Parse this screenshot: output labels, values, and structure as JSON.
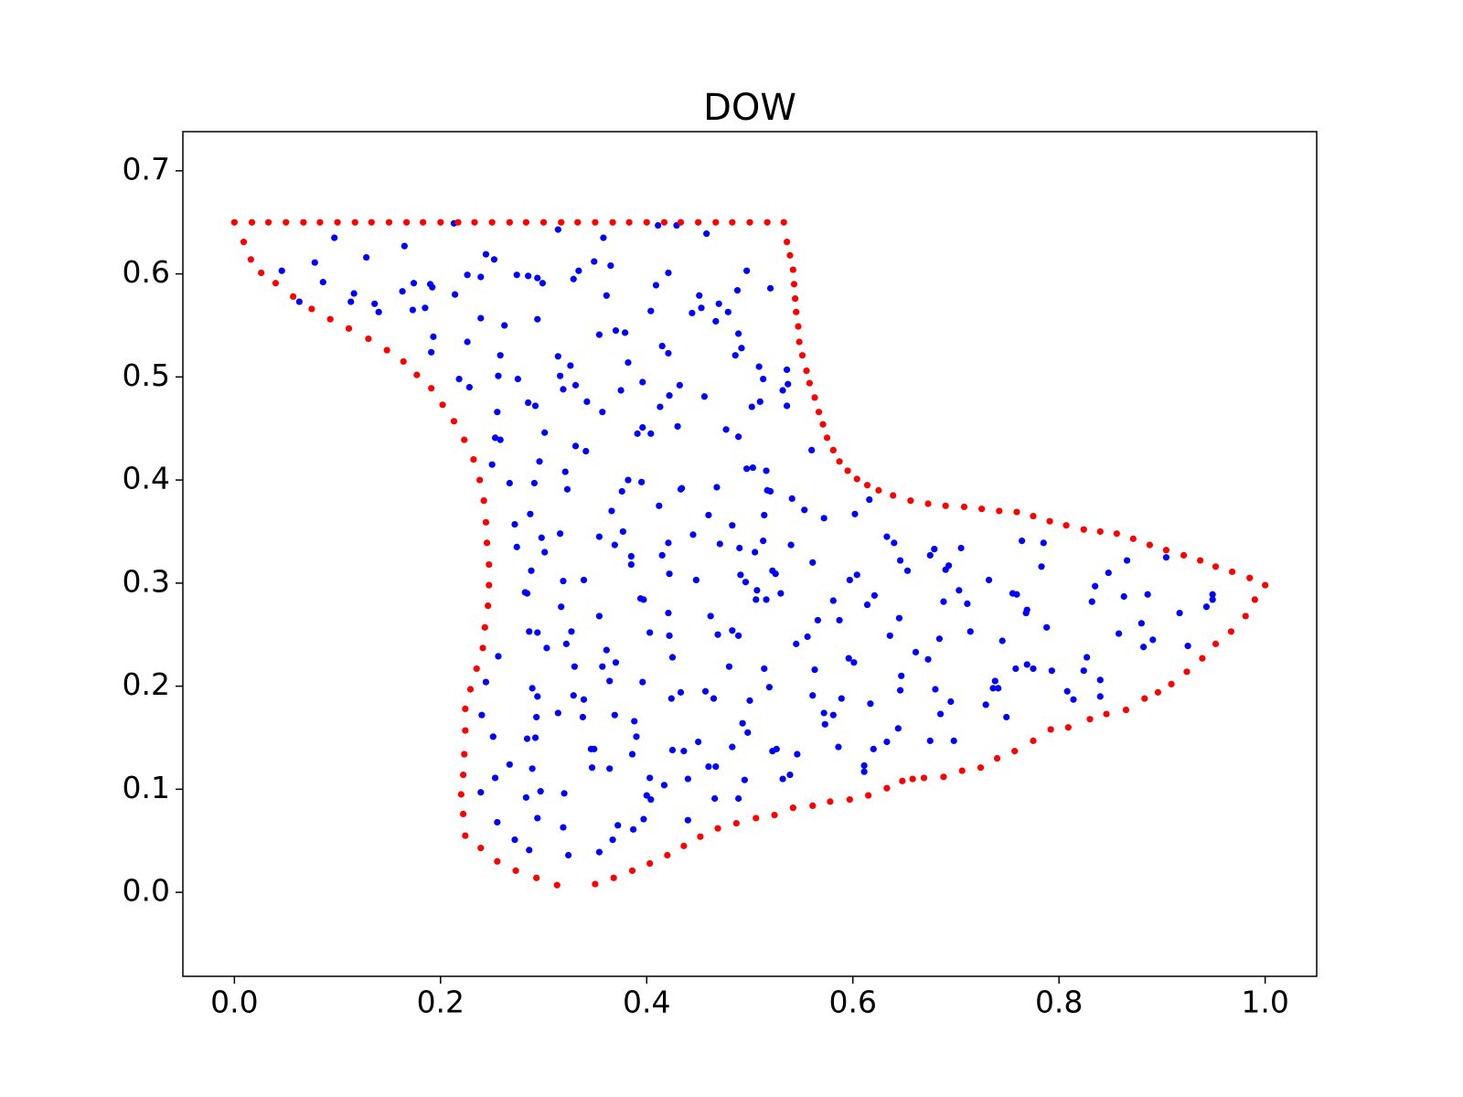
{
  "chart_data": {
    "type": "scatter",
    "title": "DOW",
    "xlim": [
      -0.05,
      1.05
    ],
    "ylim": [
      -0.0815,
      0.738
    ],
    "xticks": [
      {
        "value": 0,
        "label": "0.0"
      },
      0.2,
      0.4,
      0.6,
      0.8,
      {
        "value": 1,
        "label": "1.0"
      }
    ],
    "yticks": [
      {
        "value": 0,
        "label": "0.0"
      },
      0.1,
      0.2,
      0.3,
      0.4,
      0.5,
      0.6,
      0.7
    ],
    "series": [
      {
        "color": "#0000ff",
        "x": [
          0.213,
          0.314,
          0.358,
          0.411,
          0.429,
          0.458,
          0.097,
          0.128,
          0.165,
          0.046,
          0.078,
          0.086,
          0.063,
          0.116,
          0.113,
          0.136,
          0.14,
          0.163,
          0.174,
          0.19,
          0.192,
          0.173,
          0.185,
          0.214,
          0.226,
          0.239,
          0.244,
          0.252,
          0.274,
          0.285,
          0.294,
          0.299,
          0.329,
          0.334,
          0.349,
          0.365,
          0.361,
          0.409,
          0.421,
          0.294,
          0.262,
          0.239,
          0.226,
          0.193,
          0.191,
          0.218,
          0.228,
          0.258,
          0.256,
          0.275,
          0.314,
          0.326,
          0.316,
          0.319,
          0.331,
          0.342,
          0.357,
          0.354,
          0.37,
          0.379,
          0.382,
          0.375,
          0.396,
          0.404,
          0.415,
          0.421,
          0.432,
          0.413,
          0.422,
          0.43,
          0.396,
          0.391,
          0.404,
          0.444,
          0.451,
          0.453,
          0.467,
          0.47,
          0.479,
          0.488,
          0.497,
          0.52,
          0.489,
          0.492,
          0.486,
          0.509,
          0.513,
          0.536,
          0.537,
          0.532,
          0.536,
          0.502,
          0.51,
          0.456,
          0.477,
          0.489,
          0.503,
          0.516,
          0.517,
          0.52,
          0.541,
          0.553,
          0.56,
          0.572,
          0.602,
          0.616,
          0.301,
          0.285,
          0.292,
          0.331,
          0.341,
          0.296,
          0.25,
          0.253,
          0.258,
          0.255,
          0.267,
          0.291,
          0.287,
          0.272,
          0.274,
          0.298,
          0.316,
          0.288,
          0.301,
          0.321,
          0.323,
          0.366,
          0.376,
          0.382,
          0.395,
          0.412,
          0.433,
          0.434,
          0.468,
          0.46,
          0.483,
          0.514,
          0.497,
          0.354,
          0.377,
          0.369,
          0.385,
          0.421,
          0.445,
          0.471,
          0.49,
          0.513,
          0.54,
          0.505,
          0.385,
          0.415,
          0.422,
          0.448,
          0.491,
          0.522,
          0.525,
          0.507,
          0.496,
          0.53,
          0.561,
          0.581,
          0.587,
          0.597,
          0.604,
          0.614,
          0.621,
          0.633,
          0.64,
          0.646,
          0.653,
          0.675,
          0.679,
          0.705,
          0.69,
          0.693,
          0.703,
          0.711,
          0.688,
          0.732,
          0.755,
          0.759,
          0.764,
          0.785,
          0.783,
          0.768,
          0.769,
          0.788,
          0.832,
          0.835,
          0.848,
          0.866,
          0.863,
          0.886,
          0.904,
          0.917,
          0.949,
          0.949,
          0.943,
          0.88,
          0.858,
          0.891,
          0.882,
          0.925,
          0.827,
          0.824,
          0.84,
          0.808,
          0.814,
          0.84,
          0.793,
          0.769,
          0.775,
          0.758,
          0.745,
          0.738,
          0.736,
          0.741,
          0.729,
          0.749,
          0.714,
          0.684,
          0.673,
          0.68,
          0.695,
          0.685,
          0.675,
          0.698,
          0.661,
          0.645,
          0.636,
          0.647,
          0.646,
          0.617,
          0.644,
          0.633,
          0.62,
          0.611,
          0.611,
          0.596,
          0.601,
          0.589,
          0.581,
          0.586,
          0.572,
          0.573,
          0.561,
          0.563,
          0.566,
          0.556,
          0.545,
          0.546,
          0.539,
          0.532,
          0.526,
          0.522,
          0.514,
          0.519,
          0.5,
          0.493,
          0.498,
          0.483,
          0.489,
          0.495,
          0.466,
          0.467,
          0.46,
          0.45,
          0.44,
          0.44,
          0.436,
          0.425,
          0.417,
          0.403,
          0.4,
          0.404,
          0.397,
          0.387,
          0.367,
          0.372,
          0.354,
          0.364,
          0.346,
          0.349,
          0.347,
          0.386,
          0.388,
          0.39,
          0.369,
          0.338,
          0.339,
          0.329,
          0.314,
          0.289,
          0.294,
          0.293,
          0.292,
          0.284,
          0.289,
          0.267,
          0.283,
          0.297,
          0.294,
          0.255,
          0.272,
          0.286,
          0.319,
          0.32,
          0.324,
          0.253,
          0.239,
          0.24,
          0.251,
          0.244,
          0.256,
          0.286,
          0.294,
          0.303,
          0.322,
          0.33,
          0.357,
          0.364,
          0.37,
          0.396,
          0.361,
          0.354,
          0.317,
          0.319,
          0.339,
          0.282,
          0.284,
          0.327,
          0.403,
          0.422,
          0.425,
          0.421,
          0.394,
          0.397,
          0.424,
          0.433,
          0.457,
          0.465,
          0.462,
          0.469,
          0.483,
          0.489,
          0.48,
          0.506,
          0.516
        ],
        "y": [
          0.649,
          0.643,
          0.635,
          0.647,
          0.647,
          0.639,
          0.635,
          0.616,
          0.627,
          0.603,
          0.611,
          0.592,
          0.573,
          0.581,
          0.573,
          0.571,
          0.563,
          0.583,
          0.591,
          0.59,
          0.587,
          0.565,
          0.567,
          0.58,
          0.599,
          0.597,
          0.619,
          0.614,
          0.599,
          0.598,
          0.596,
          0.591,
          0.595,
          0.603,
          0.612,
          0.608,
          0.579,
          0.589,
          0.601,
          0.556,
          0.55,
          0.557,
          0.534,
          0.539,
          0.524,
          0.498,
          0.49,
          0.521,
          0.501,
          0.498,
          0.52,
          0.511,
          0.501,
          0.488,
          0.492,
          0.476,
          0.466,
          0.541,
          0.545,
          0.543,
          0.514,
          0.487,
          0.495,
          0.564,
          0.53,
          0.523,
          0.492,
          0.471,
          0.482,
          0.452,
          0.451,
          0.445,
          0.445,
          0.562,
          0.579,
          0.567,
          0.554,
          0.571,
          0.563,
          0.584,
          0.603,
          0.586,
          0.542,
          0.528,
          0.521,
          0.51,
          0.498,
          0.507,
          0.493,
          0.487,
          0.472,
          0.471,
          0.476,
          0.481,
          0.449,
          0.442,
          0.412,
          0.409,
          0.39,
          0.389,
          0.382,
          0.371,
          0.429,
          0.363,
          0.367,
          0.381,
          0.446,
          0.475,
          0.472,
          0.433,
          0.428,
          0.418,
          0.415,
          0.441,
          0.439,
          0.466,
          0.397,
          0.397,
          0.367,
          0.357,
          0.335,
          0.344,
          0.348,
          0.312,
          0.33,
          0.408,
          0.391,
          0.37,
          0.389,
          0.4,
          0.398,
          0.375,
          0.391,
          0.392,
          0.393,
          0.366,
          0.356,
          0.366,
          0.411,
          0.345,
          0.35,
          0.337,
          0.326,
          0.339,
          0.347,
          0.338,
          0.334,
          0.341,
          0.337,
          0.33,
          0.318,
          0.327,
          0.309,
          0.303,
          0.308,
          0.312,
          0.309,
          0.293,
          0.301,
          0.29,
          0.32,
          0.283,
          0.264,
          0.303,
          0.308,
          0.279,
          0.288,
          0.345,
          0.339,
          0.322,
          0.312,
          0.327,
          0.333,
          0.334,
          0.313,
          0.317,
          0.293,
          0.28,
          0.282,
          0.303,
          0.29,
          0.289,
          0.341,
          0.339,
          0.316,
          0.271,
          0.274,
          0.257,
          0.282,
          0.297,
          0.31,
          0.322,
          0.287,
          0.289,
          0.325,
          0.271,
          0.289,
          0.284,
          0.277,
          0.261,
          0.251,
          0.245,
          0.238,
          0.239,
          0.228,
          0.215,
          0.206,
          0.195,
          0.187,
          0.19,
          0.215,
          0.221,
          0.217,
          0.217,
          0.244,
          0.205,
          0.198,
          0.198,
          0.182,
          0.17,
          0.253,
          0.246,
          0.226,
          0.197,
          0.185,
          0.173,
          0.147,
          0.147,
          0.233,
          0.266,
          0.249,
          0.21,
          0.196,
          0.183,
          0.159,
          0.146,
          0.139,
          0.123,
          0.117,
          0.227,
          0.223,
          0.188,
          0.172,
          0.141,
          0.174,
          0.163,
          0.191,
          0.216,
          0.264,
          0.248,
          0.241,
          0.134,
          0.114,
          0.11,
          0.139,
          0.137,
          0.217,
          0.199,
          0.186,
          0.164,
          0.155,
          0.141,
          0.091,
          0.109,
          0.091,
          0.122,
          0.122,
          0.146,
          0.11,
          0.07,
          0.137,
          0.138,
          0.104,
          0.111,
          0.094,
          0.09,
          0.071,
          0.061,
          0.051,
          0.065,
          0.039,
          0.12,
          0.139,
          0.139,
          0.121,
          0.134,
          0.166,
          0.151,
          0.172,
          0.17,
          0.187,
          0.191,
          0.174,
          0.198,
          0.19,
          0.17,
          0.15,
          0.149,
          0.12,
          0.124,
          0.092,
          0.098,
          0.072,
          0.068,
          0.051,
          0.041,
          0.063,
          0.096,
          0.036,
          0.111,
          0.097,
          0.172,
          0.151,
          0.204,
          0.229,
          0.253,
          0.252,
          0.237,
          0.241,
          0.219,
          0.219,
          0.205,
          0.223,
          0.204,
          0.235,
          0.268,
          0.277,
          0.302,
          0.303,
          0.291,
          0.29,
          0.253,
          0.252,
          0.249,
          0.228,
          0.271,
          0.285,
          0.284,
          0.188,
          0.194,
          0.195,
          0.188,
          0.268,
          0.25,
          0.254,
          0.249,
          0.219,
          0.284,
          0.284
        ]
      },
      {
        "color": "#ff0000",
        "x": [
          0,
          0.017,
          0.033,
          0.05,
          0.067,
          0.083,
          0.1,
          0.117,
          0.133,
          0.15,
          0.167,
          0.183,
          0.2,
          0.217,
          0.233,
          0.25,
          0.267,
          0.283,
          0.3,
          0.317,
          0.333,
          0.35,
          0.367,
          0.383,
          0.4,
          0.417,
          0.433,
          0.45,
          0.467,
          0.483,
          0.5,
          0.517,
          0.533,
          0.536,
          0.539,
          0.542,
          0.543,
          0.544,
          0.545,
          0.547,
          0.548,
          0.551,
          0.555,
          0.558,
          0.563,
          0.567,
          0.571,
          0.575,
          0.581,
          0.587,
          0.595,
          0.604,
          0.614,
          0.625,
          0.639,
          0.656,
          0.673,
          0.69,
          0.708,
          0.725,
          0.742,
          0.759,
          0.775,
          0.791,
          0.807,
          0.824,
          0.84,
          0.856,
          0.872,
          0.888,
          0.904,
          0.921,
          0.937,
          0.952,
          0.968,
          0.985,
          1.0,
          0.99,
          0.981,
          0.967,
          0.952,
          0.939,
          0.924,
          0.909,
          0.896,
          0.883,
          0.865,
          0.846,
          0.83,
          0.809,
          0.792,
          0.775,
          0.757,
          0.74,
          0.724,
          0.706,
          0.688,
          0.669,
          0.658,
          0.648,
          0.633,
          0.615,
          0.597,
          0.578,
          0.561,
          0.542,
          0.524,
          0.506,
          0.487,
          0.469,
          0.452,
          0.436,
          0.42,
          0.403,
          0.386,
          0.368,
          0.35,
          0.313,
          0.293,
          0.273,
          0.255,
          0.239,
          0.224,
          0.222,
          0.22,
          0.222,
          0.223,
          0.224,
          0.224,
          0.229,
          0.235,
          0.241,
          0.243,
          0.246,
          0.247,
          0.247,
          0.245,
          0.244,
          0.242,
          0.238,
          0.232,
          0.223,
          0.213,
          0.202,
          0.191,
          0.177,
          0.164,
          0.148,
          0.13,
          0.111,
          0.093,
          0.075,
          0.057,
          0.04,
          0.026,
          0.016,
          0.009
        ],
        "y": [
          0.65,
          0.65,
          0.65,
          0.65,
          0.65,
          0.65,
          0.65,
          0.65,
          0.65,
          0.65,
          0.65,
          0.65,
          0.65,
          0.65,
          0.65,
          0.65,
          0.65,
          0.65,
          0.65,
          0.65,
          0.65,
          0.65,
          0.65,
          0.65,
          0.65,
          0.65,
          0.65,
          0.65,
          0.65,
          0.65,
          0.65,
          0.65,
          0.65,
          0.631,
          0.618,
          0.604,
          0.59,
          0.576,
          0.563,
          0.549,
          0.534,
          0.521,
          0.506,
          0.494,
          0.48,
          0.466,
          0.454,
          0.441,
          0.429,
          0.418,
          0.409,
          0.401,
          0.395,
          0.39,
          0.385,
          0.38,
          0.377,
          0.375,
          0.374,
          0.372,
          0.37,
          0.369,
          0.365,
          0.36,
          0.356,
          0.352,
          0.35,
          0.348,
          0.343,
          0.337,
          0.332,
          0.327,
          0.322,
          0.316,
          0.311,
          0.305,
          0.298,
          0.284,
          0.268,
          0.253,
          0.241,
          0.227,
          0.214,
          0.202,
          0.194,
          0.188,
          0.177,
          0.173,
          0.168,
          0.16,
          0.158,
          0.147,
          0.137,
          0.13,
          0.121,
          0.118,
          0.112,
          0.111,
          0.11,
          0.108,
          0.101,
          0.094,
          0.09,
          0.088,
          0.084,
          0.082,
          0.075,
          0.072,
          0.067,
          0.062,
          0.054,
          0.045,
          0.036,
          0.028,
          0.021,
          0.014,
          0.008,
          0.007,
          0.014,
          0.021,
          0.03,
          0.043,
          0.055,
          0.076,
          0.095,
          0.114,
          0.134,
          0.157,
          0.178,
          0.197,
          0.217,
          0.237,
          0.257,
          0.278,
          0.298,
          0.318,
          0.339,
          0.359,
          0.38,
          0.4,
          0.42,
          0.439,
          0.457,
          0.473,
          0.489,
          0.502,
          0.515,
          0.526,
          0.537,
          0.547,
          0.556,
          0.566,
          0.578,
          0.591,
          0.601,
          0.614,
          0.631
        ]
      }
    ]
  }
}
